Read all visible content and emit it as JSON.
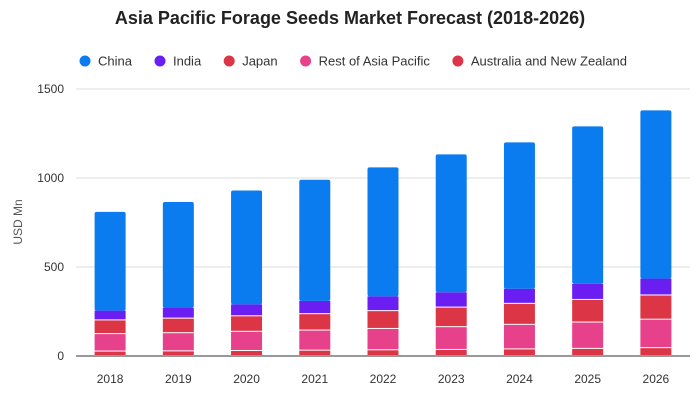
{
  "chart_data": {
    "type": "bar",
    "stacked": true,
    "title": "Asia Pacific Forage Seeds Market Forecast (2018-2026)",
    "xlabel": "",
    "ylabel": "USD Mn",
    "ylim": [
      0,
      1500
    ],
    "yticks": [
      0,
      500,
      1000,
      1500
    ],
    "grid": true,
    "legend_position": "top",
    "categories": [
      "2018",
      "2019",
      "2020",
      "2021",
      "2022",
      "2023",
      "2024",
      "2025",
      "2026"
    ],
    "series": [
      {
        "name": "Australia and New Zealand",
        "color": "#dc3545",
        "values": [
          25,
          26,
          28,
          30,
          32,
          34,
          37,
          40,
          44
        ]
      },
      {
        "name": "Rest of Asia Pacific",
        "color": "#e8418b",
        "values": [
          98,
          102,
          108,
          113,
          120,
          128,
          138,
          148,
          160
        ]
      },
      {
        "name": "Japan",
        "color": "#dc3545",
        "values": [
          77,
          82,
          87,
          92,
          100,
          110,
          118,
          127,
          136
        ]
      },
      {
        "name": "India",
        "color": "#6a1ef2",
        "values": [
          55,
          60,
          67,
          75,
          83,
          86,
          85,
          90,
          95
        ]
      },
      {
        "name": "China",
        "color": "#0b7bf0",
        "values": [
          555,
          595,
          640,
          680,
          725,
          775,
          822,
          885,
          945
        ]
      }
    ],
    "legend_order": [
      "China",
      "India",
      "Japan",
      "Rest of Asia Pacific",
      "Australia and New Zealand"
    ]
  }
}
